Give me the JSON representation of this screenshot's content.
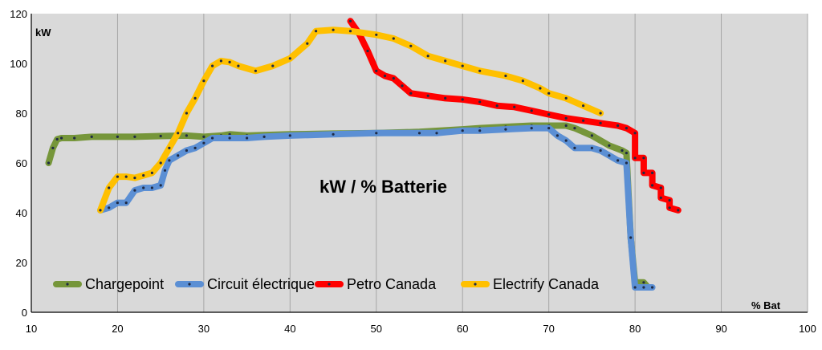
{
  "chart_data": {
    "type": "line",
    "title": "kW / % Batterie",
    "xlabel": "% Bat",
    "ylabel": "kW",
    "xlim": [
      10,
      100
    ],
    "ylim": [
      0,
      120
    ],
    "x_ticks": [
      "10",
      "20",
      "30",
      "40",
      "50",
      "60",
      "70",
      "80",
      "90",
      "100"
    ],
    "y_ticks": [
      "0",
      "20",
      "40",
      "60",
      "80",
      "100",
      "120"
    ],
    "grid": "vertical",
    "legend_position": "bottom-left",
    "colors": {
      "plot_bg": "#d9d9d9",
      "grid": "#a6a6a6",
      "marker": "#1f2a44"
    },
    "series": [
      {
        "name": "Chargepoint",
        "color": "#76963a",
        "points": [
          [
            12,
            60
          ],
          [
            12.5,
            66
          ],
          [
            13,
            69.5
          ],
          [
            13.5,
            70
          ],
          [
            15,
            70
          ],
          [
            17,
            70.5
          ],
          [
            20,
            70.5
          ],
          [
            22,
            70.5
          ],
          [
            25,
            70.8
          ],
          [
            28,
            71
          ],
          [
            30,
            70.5
          ],
          [
            32,
            71
          ],
          [
            33,
            71.5
          ],
          [
            35,
            71
          ],
          [
            40,
            71.5
          ],
          [
            45,
            71.8
          ],
          [
            50,
            72
          ],
          [
            55,
            72.5
          ],
          [
            60,
            73.5
          ],
          [
            62,
            74
          ],
          [
            65,
            74.5
          ],
          [
            68,
            75
          ],
          [
            70,
            75
          ],
          [
            72,
            75
          ],
          [
            73,
            74
          ],
          [
            75,
            71
          ],
          [
            77,
            67
          ],
          [
            78.5,
            65
          ],
          [
            79,
            64
          ],
          [
            79.5,
            30
          ],
          [
            80,
            12
          ],
          [
            81,
            12
          ],
          [
            81.5,
            10
          ]
        ]
      },
      {
        "name": "Circuit électrique",
        "color": "#5b8fd4",
        "points": [
          [
            18,
            41
          ],
          [
            19,
            42
          ],
          [
            20,
            44
          ],
          [
            21,
            44
          ],
          [
            22,
            49
          ],
          [
            23,
            50
          ],
          [
            24,
            50
          ],
          [
            25,
            51
          ],
          [
            25.5,
            57
          ],
          [
            26,
            61
          ],
          [
            27,
            63
          ],
          [
            28,
            65
          ],
          [
            29,
            66
          ],
          [
            30,
            68
          ],
          [
            31,
            70
          ],
          [
            33,
            70
          ],
          [
            35,
            70
          ],
          [
            37,
            70.5
          ],
          [
            40,
            71
          ],
          [
            45,
            71.5
          ],
          [
            50,
            72
          ],
          [
            55,
            72
          ],
          [
            57,
            72
          ],
          [
            60,
            73
          ],
          [
            62,
            73
          ],
          [
            65,
            73.5
          ],
          [
            68,
            74
          ],
          [
            70,
            74
          ],
          [
            71,
            71
          ],
          [
            72,
            69
          ],
          [
            73,
            66
          ],
          [
            75,
            66
          ],
          [
            76,
            65
          ],
          [
            77,
            63
          ],
          [
            78,
            61
          ],
          [
            79,
            60
          ],
          [
            79.5,
            30
          ],
          [
            80,
            10
          ],
          [
            81,
            10
          ],
          [
            82,
            10
          ]
        ]
      },
      {
        "name": "Petro Canada",
        "color": "#ff0000",
        "points": [
          [
            47,
            117
          ],
          [
            48,
            112
          ],
          [
            49,
            105
          ],
          [
            50,
            97
          ],
          [
            51,
            95
          ],
          [
            52,
            94
          ],
          [
            53,
            91
          ],
          [
            54,
            88
          ],
          [
            56,
            87
          ],
          [
            58,
            86
          ],
          [
            60,
            85.5
          ],
          [
            62,
            84.5
          ],
          [
            64,
            83
          ],
          [
            66,
            82.5
          ],
          [
            68,
            81
          ],
          [
            70,
            79.5
          ],
          [
            72,
            78
          ],
          [
            74,
            77
          ],
          [
            76,
            76
          ],
          [
            78,
            75
          ],
          [
            79,
            74
          ],
          [
            80,
            72
          ],
          [
            80,
            62
          ],
          [
            81,
            62
          ],
          [
            81,
            56
          ],
          [
            82,
            56
          ],
          [
            82,
            51
          ],
          [
            83,
            50
          ],
          [
            83,
            46
          ],
          [
            84,
            45
          ],
          [
            84,
            42
          ],
          [
            85,
            41
          ]
        ]
      },
      {
        "name": "Electrify Canada",
        "color": "#ffc000",
        "points": [
          [
            18,
            41
          ],
          [
            19,
            50
          ],
          [
            20,
            54.5
          ],
          [
            21,
            54.5
          ],
          [
            22,
            54
          ],
          [
            23,
            55
          ],
          [
            24,
            56
          ],
          [
            25,
            60
          ],
          [
            26,
            66
          ],
          [
            27,
            72
          ],
          [
            28,
            80
          ],
          [
            29,
            86
          ],
          [
            30,
            93
          ],
          [
            31,
            99
          ],
          [
            32,
            101
          ],
          [
            33,
            100.5
          ],
          [
            34,
            99
          ],
          [
            36,
            97
          ],
          [
            38,
            99
          ],
          [
            40,
            102
          ],
          [
            42,
            108
          ],
          [
            43,
            113
          ],
          [
            45,
            113.5
          ],
          [
            47,
            113
          ],
          [
            50,
            111.5
          ],
          [
            52,
            110
          ],
          [
            54,
            107
          ],
          [
            56,
            103
          ],
          [
            58,
            101
          ],
          [
            60,
            99
          ],
          [
            62,
            97
          ],
          [
            65,
            95
          ],
          [
            67,
            93
          ],
          [
            69,
            90
          ],
          [
            70,
            88
          ],
          [
            72,
            86
          ],
          [
            74,
            83
          ],
          [
            76,
            80
          ]
        ]
      }
    ]
  }
}
